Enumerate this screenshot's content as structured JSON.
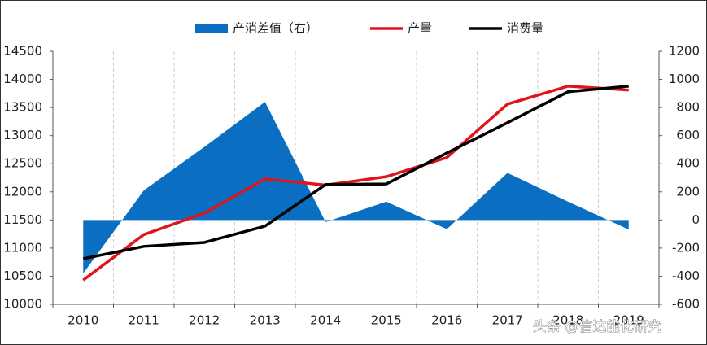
{
  "chart_data": {
    "type": "line",
    "categories": [
      "2010",
      "2011",
      "2012",
      "2013",
      "2014",
      "2015",
      "2016",
      "2017",
      "2018",
      "2019"
    ],
    "series": [
      {
        "name": "产消差值（右）",
        "type": "area",
        "axis": "y2",
        "color": "#0a6fc2",
        "values": [
          -380,
          210,
          520,
          840,
          -15,
          130,
          -65,
          335,
          130,
          -68
        ]
      },
      {
        "name": "产量",
        "color": "#e0141a",
        "values": [
          10430,
          11240,
          11620,
          12230,
          12120,
          12270,
          12610,
          13560,
          13880,
          13810
        ]
      },
      {
        "name": "消费量",
        "color": "#000000",
        "values": [
          10810,
          11030,
          11100,
          11390,
          12130,
          12140,
          12690,
          13230,
          13780,
          13880
        ]
      }
    ],
    "ylim": [
      10000,
      14500
    ],
    "yticks": [
      10000,
      10500,
      11000,
      11500,
      12000,
      12500,
      13000,
      13500,
      14000,
      14500
    ],
    "y2lim": [
      -600,
      1200
    ],
    "y2ticks": [
      -600,
      -400,
      -200,
      0,
      200,
      400,
      600,
      800,
      1000,
      1200
    ],
    "legend": "top",
    "watermark": "头条 @信达能化研究"
  }
}
